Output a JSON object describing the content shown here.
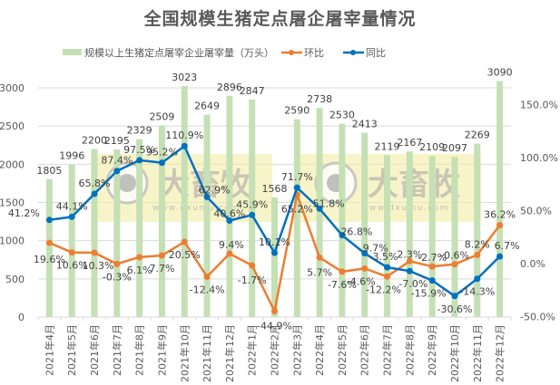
{
  "chart_data": {
    "type": "bar+line",
    "title": "全国规模生猪定点屠企屠宰量情况",
    "categories": [
      "2021年4月",
      "2021年5月",
      "2021年6月",
      "2021年7月",
      "2021年8月",
      "2021年9月",
      "2021年10月",
      "2021年11月",
      "2021年12月",
      "2022年1月",
      "2022年2月",
      "2022年3月",
      "2022年4月",
      "2022年5月",
      "2022年6月",
      "2022年7月",
      "2022年8月",
      "2022年9月",
      "2022年10月",
      "2022年11月",
      "2022年12月"
    ],
    "series": [
      {
        "name": "规模以上生猪定点屠宰企业屠宰量（万头）",
        "type": "bar",
        "axis": "left",
        "color": "#c5e0b4",
        "values": [
          1805,
          1996,
          2200,
          2195,
          2329,
          2509,
          3023,
          2649,
          2896,
          2847,
          1568,
          2590,
          2738,
          2530,
          2413,
          2119,
          2167,
          2109,
          2097,
          2269,
          3090
        ]
      },
      {
        "name": "环比",
        "type": "line",
        "axis": "right",
        "color": "#ed7d31",
        "unit": "%",
        "values": [
          19.6,
          10.6,
          10.3,
          -0.3,
          6.1,
          7.7,
          20.5,
          -12.4,
          9.4,
          -1.7,
          -44.9,
          65.2,
          5.7,
          -7.6,
          -4.6,
          -12.2,
          2.3,
          -2.7,
          -0.6,
          8.2,
          36.2
        ]
      },
      {
        "name": "同比",
        "type": "line",
        "axis": "right",
        "color": "#0070c0",
        "unit": "%",
        "values": [
          41.2,
          44.1,
          65.8,
          87.4,
          97.5,
          95.2,
          110.9,
          62.9,
          40.6,
          45.9,
          10.1,
          71.7,
          51.8,
          26.8,
          9.7,
          -3.5,
          -7.0,
          -15.9,
          -30.6,
          -14.3,
          6.7
        ]
      }
    ],
    "left_axis": {
      "min": 0,
      "max": 3000,
      "ticks": [
        "0",
        "500",
        "1000",
        "1500",
        "2000",
        "2500",
        "3000"
      ]
    },
    "right_axis": {
      "min": -50,
      "max": 150,
      "ticks": [
        "-50.0%",
        "0.0%",
        "50.0%",
        "100.0%",
        "150.0%"
      ]
    },
    "grid": true,
    "legend_position": "top",
    "watermark": {
      "text": "大畜牧",
      "url_text": "www.dxumu.com"
    }
  }
}
